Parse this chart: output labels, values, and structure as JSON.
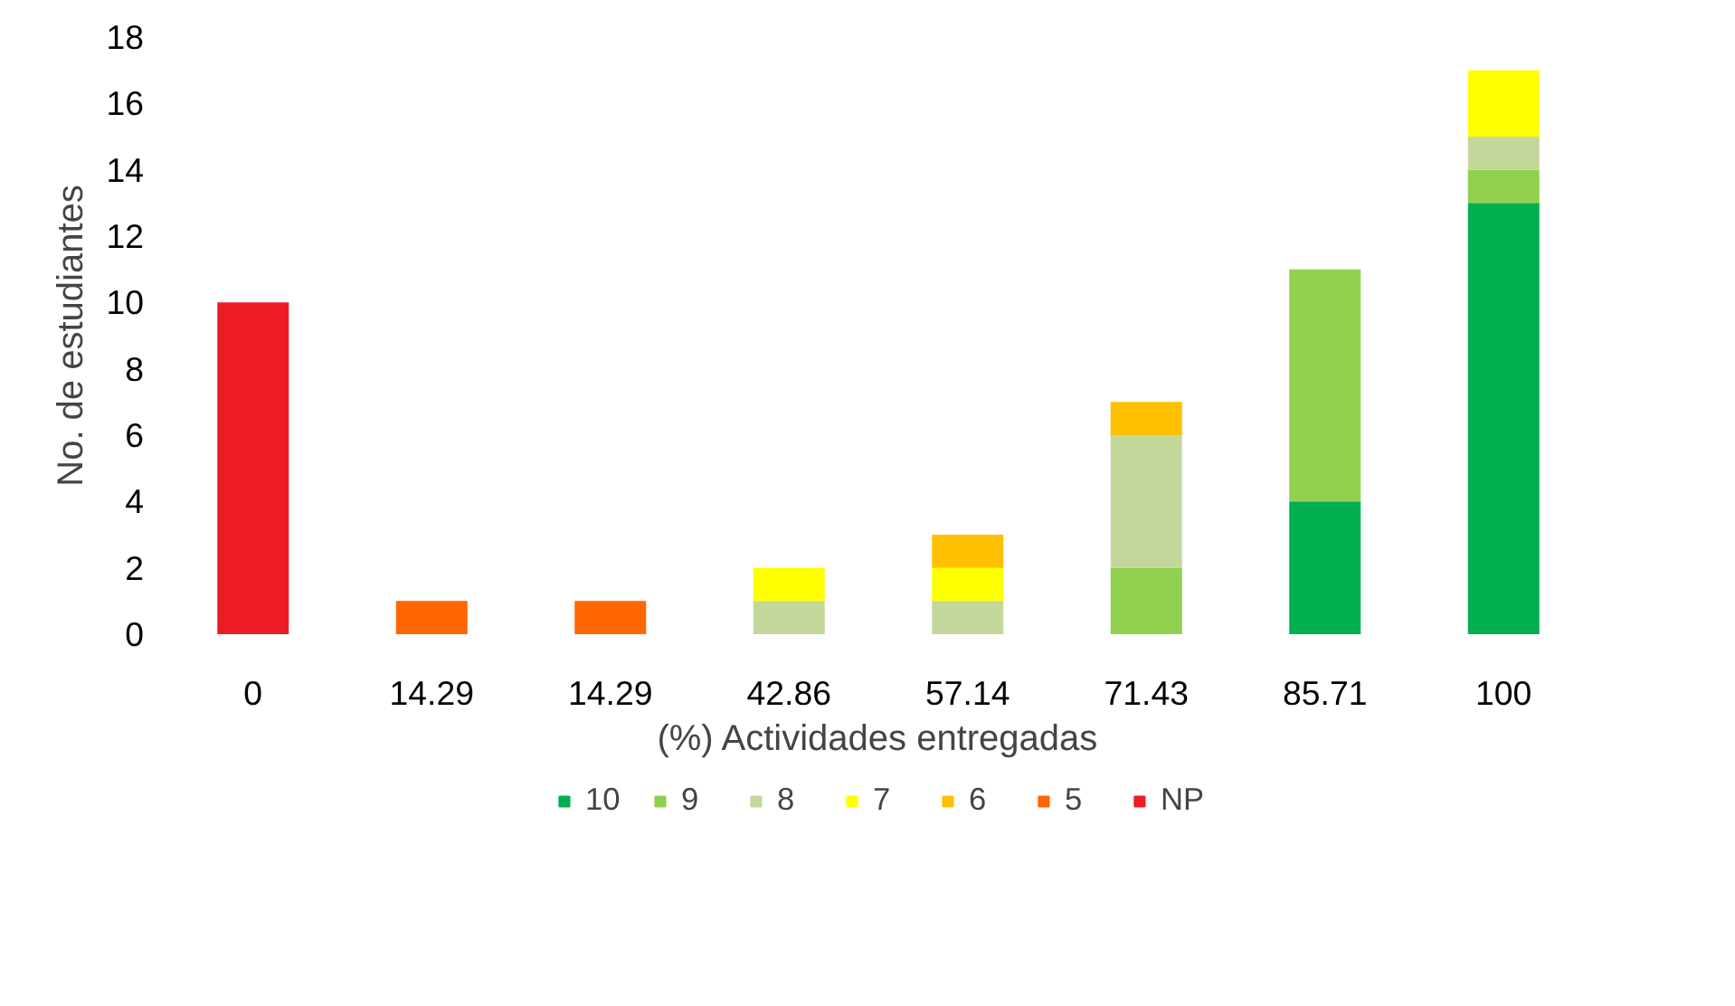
{
  "chart_data": {
    "type": "bar",
    "stacked": true,
    "xlabel": "(%) Actividades entregadas",
    "ylabel": "No. de estudiantes",
    "categories": [
      "0",
      "14.29",
      "14.29",
      "42.86",
      "57.14",
      "71.43",
      "85.71",
      "100"
    ],
    "series": [
      {
        "name": "10",
        "color": "#00b050",
        "values": [
          null,
          null,
          null,
          null,
          null,
          null,
          4,
          13
        ]
      },
      {
        "name": "9",
        "color": "#92d050",
        "values": [
          null,
          null,
          null,
          null,
          null,
          2,
          7,
          1
        ]
      },
      {
        "name": "8",
        "color": "#c4d79b",
        "values": [
          null,
          null,
          null,
          1,
          1,
          4,
          null,
          1
        ]
      },
      {
        "name": "7",
        "color": "#ffff00",
        "values": [
          null,
          null,
          null,
          1,
          1,
          null,
          null,
          2
        ]
      },
      {
        "name": "6",
        "color": "#ffc000",
        "values": [
          null,
          null,
          null,
          null,
          1,
          1,
          null,
          null
        ]
      },
      {
        "name": "5",
        "color": "#ff6600",
        "values": [
          null,
          1,
          1,
          null,
          null,
          null,
          null,
          null
        ]
      },
      {
        "name": "NP",
        "color": "#ed1c24",
        "values": [
          10,
          null,
          null,
          null,
          null,
          null,
          null,
          null
        ]
      }
    ],
    "ylim": [
      0,
      18
    ],
    "yticks": [
      0,
      2,
      4,
      6,
      8,
      10,
      12,
      14,
      16,
      18
    ],
    "grid": false,
    "legend": "bottom"
  }
}
